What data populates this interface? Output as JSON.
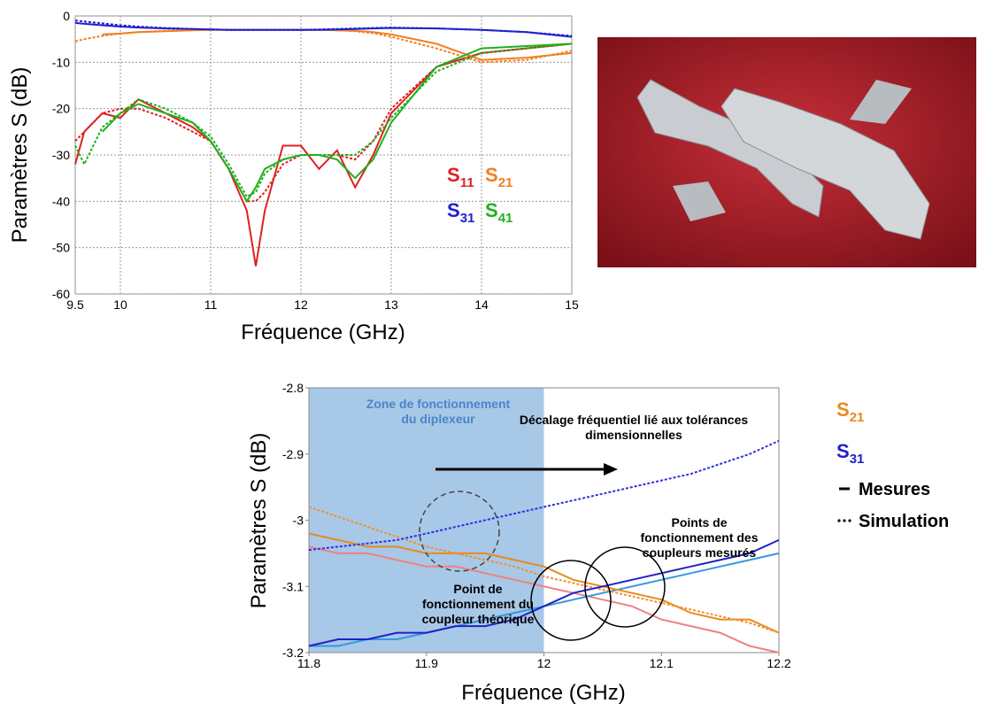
{
  "chart_data": [
    {
      "type": "line",
      "x_label": "Fréquence (GHz)",
      "y_label": "Paramètres S (dB)",
      "x": [
        9.5,
        9.6,
        9.8,
        10,
        10.2,
        10.5,
        10.8,
        11,
        11.2,
        11.4,
        11.5,
        11.6,
        11.8,
        12,
        12.2,
        12.4,
        12.6,
        12.8,
        13,
        13.5,
        14,
        14.5,
        15
      ],
      "series": [
        {
          "name": "S11",
          "color": "#e02020",
          "values": [
            -32,
            -25,
            -21,
            -22,
            -18,
            -21,
            -24,
            -27,
            -33,
            -42,
            -54,
            -42,
            -28,
            -28,
            -33,
            -29,
            -37,
            -30,
            -21,
            -11,
            -8,
            -7,
            -6
          ]
        },
        {
          "color": "#e02020",
          "dashed": true,
          "values": [
            -27,
            -25,
            -21,
            -20,
            -20,
            -22,
            -25,
            -27,
            -33,
            -40,
            -40,
            -38,
            -32,
            -30,
            -30,
            -30,
            -31,
            -27,
            -20,
            -11,
            -8,
            -7,
            -6
          ]
        },
        {
          "name": "S21",
          "color": "#f08020",
          "values": [
            null,
            null,
            -4,
            -3.8,
            -3.5,
            -3.3,
            -3.1,
            -3,
            -3,
            -3,
            -3,
            -3,
            -3,
            -3,
            -3,
            -3.1,
            -3.2,
            -3.5,
            -4,
            -6,
            -9.5,
            -9,
            -8
          ]
        },
        {
          "color": "#f08020",
          "dashed": true,
          "values": [
            -5.5,
            -5,
            -4.3,
            -3.8,
            -3.5,
            -3.2,
            -3,
            -3,
            -3,
            -3,
            -3,
            -3,
            -3,
            -3,
            -3,
            -3.1,
            -3.3,
            -3.7,
            -4.5,
            -7,
            -10,
            -9.5,
            -7.5
          ]
        },
        {
          "name": "S31",
          "color": "#2020d0",
          "values": [
            -1.5,
            -1.7,
            -2,
            -2.3,
            -2.5,
            -2.7,
            -2.8,
            -2.9,
            -3,
            -3,
            -3,
            -3,
            -3,
            -3,
            -3,
            -2.9,
            -2.8,
            -2.7,
            -2.6,
            -2.7,
            -3,
            -3.5,
            -4.5
          ]
        },
        {
          "color": "#2020d0",
          "dashed": true,
          "values": [
            -1,
            -1.2,
            -1.6,
            -2,
            -2.3,
            -2.6,
            -2.8,
            -2.9,
            -3,
            -3,
            -3,
            -3,
            -3,
            -3,
            -2.9,
            -2.8,
            -2.7,
            -2.6,
            -2.5,
            -2.7,
            -3,
            -3.5,
            -4.3
          ]
        },
        {
          "name": "S41",
          "color": "#20b020",
          "values": [
            null,
            null,
            -25,
            -21,
            -19,
            -21,
            -23,
            -27,
            -33,
            -40,
            -37,
            -33,
            -31,
            -30,
            -30,
            -31,
            -35,
            -31,
            -23,
            -11,
            -7,
            -6.5,
            -6
          ]
        },
        {
          "color": "#20b020",
          "dashed": true,
          "values": [
            -28,
            -32,
            -24,
            -21,
            -18,
            -20,
            -23,
            -26,
            -32,
            -39,
            -38,
            -34,
            -31,
            -30,
            -30,
            -30,
            -30,
            -27,
            -22,
            -12,
            -8,
            -7,
            -6
          ]
        }
      ],
      "xlim": [
        9.5,
        15
      ],
      "xticks": [
        9.5,
        10,
        11,
        12,
        13,
        14,
        15
      ],
      "ylim": [
        -60,
        0
      ],
      "yticks": [
        -60,
        -50,
        -40,
        -30,
        -20,
        -10,
        0
      ],
      "grid": true
    },
    {
      "type": "line",
      "x_label": "Fréquence (GHz)",
      "y_label": "Paramètres S (dB)",
      "x": [
        11.8,
        11.825,
        11.85,
        11.875,
        11.9,
        11.925,
        11.95,
        11.975,
        12,
        12.025,
        12.05,
        12.075,
        12.1,
        12.125,
        12.15,
        12.175,
        12.2
      ],
      "series": [
        {
          "color": "#f08080",
          "values": [
            -3.04,
            -3.05,
            -3.05,
            -3.06,
            -3.07,
            -3.07,
            -3.08,
            -3.09,
            -3.1,
            -3.11,
            -3.12,
            -3.13,
            -3.15,
            -3.16,
            -3.17,
            -3.19,
            -3.2
          ]
        },
        {
          "color": "#3399dd",
          "values": [
            -3.19,
            -3.19,
            -3.18,
            -3.18,
            -3.17,
            -3.16,
            -3.15,
            -3.14,
            -3.13,
            -3.12,
            -3.11,
            -3.1,
            -3.09,
            -3.08,
            -3.07,
            -3.06,
            -3.05
          ]
        },
        {
          "name": "S21",
          "color": "#e88a20",
          "values": [
            -3.02,
            -3.03,
            -3.04,
            -3.04,
            -3.05,
            -3.05,
            -3.05,
            -3.06,
            -3.07,
            -3.09,
            -3.1,
            -3.11,
            -3.12,
            -3.14,
            -3.15,
            -3.15,
            -3.17
          ]
        },
        {
          "color": "#f09030",
          "dashed": true,
          "values": [
            -2.98,
            -2.995,
            -3.01,
            -3.025,
            -3.04,
            -3.05,
            -3.06,
            -3.07,
            -3.085,
            -3.095,
            -3.105,
            -3.115,
            -3.125,
            -3.135,
            -3.145,
            -3.155,
            -3.17
          ]
        },
        {
          "name": "S31",
          "color": "#2020c8",
          "values": [
            -3.19,
            -3.18,
            -3.18,
            -3.17,
            -3.17,
            -3.16,
            -3.16,
            -3.15,
            -3.13,
            -3.11,
            -3.1,
            -3.09,
            -3.08,
            -3.07,
            -3.06,
            -3.05,
            -3.03
          ]
        },
        {
          "color": "#3030e0",
          "dashed": true,
          "values": [
            -3.045,
            -3.04,
            -3.035,
            -3.03,
            -3.02,
            -3.01,
            -3,
            -2.99,
            -2.98,
            -2.97,
            -2.96,
            -2.95,
            -2.94,
            -2.93,
            -2.915,
            -2.9,
            -2.88
          ]
        }
      ],
      "shaded_x": [
        11.8,
        12
      ],
      "shade_color": "#a8c8e8",
      "xlim": [
        11.8,
        12.2
      ],
      "xticks": [
        11.8,
        11.9,
        12,
        12.1,
        12.2
      ],
      "ylim": [
        -3.2,
        -2.8
      ],
      "yticks": [
        -3.2,
        -3.1,
        -3,
        -2.9,
        -2.8
      ],
      "grid": false,
      "line_styles": [
        "Mesures",
        "Simulation"
      ],
      "annotations": [
        "Zone de fonctionnement du diplexeur",
        "Décalage fréquentiel lié aux tolérances dimensionnelles",
        "Points de fonctionnement des coupleurs mesurés",
        "Point de fonctionnement du coupleur théorique"
      ]
    }
  ]
}
